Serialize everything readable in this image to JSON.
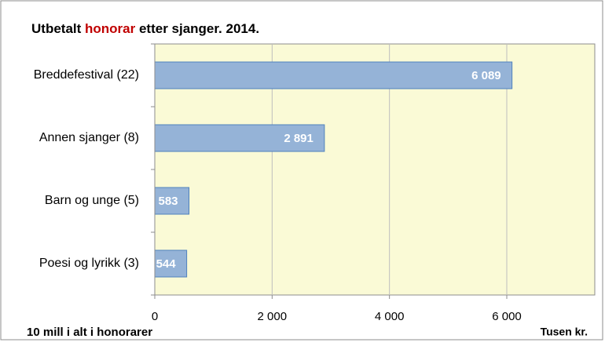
{
  "chart_data": {
    "type": "bar",
    "orientation": "horizontal",
    "title": [
      "Utbetalt ",
      "honorar",
      " etter sjanger. 2014."
    ],
    "title_colors": [
      "#000000",
      "#c00000",
      "#000000"
    ],
    "categories": [
      "Breddefestival (22)",
      "Annen sjanger (8)",
      "Barn og unge (5)",
      "Poesi og lyrikk (3)"
    ],
    "values": [
      6089,
      2891,
      583,
      544
    ],
    "value_labels": [
      "6 089",
      "2 891",
      "583",
      "544"
    ],
    "color": "#95b3d7",
    "xlim": [
      0,
      7500
    ],
    "xticks": [
      0,
      {
        "value": 2000,
        "label": "2 000"
      },
      {
        "value": 4000,
        "label": "4 000"
      },
      {
        "value": 6000,
        "label": "6 000"
      }
    ],
    "grid": true,
    "xlabel": "Tusen kr.",
    "footnote": "10 mill i alt i honorarer"
  }
}
